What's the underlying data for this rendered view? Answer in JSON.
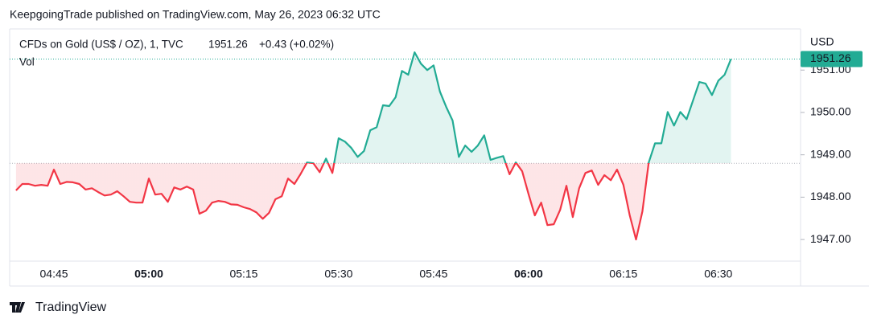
{
  "header": {
    "publisher": "KeepgoingTrade published on TradingView.com, May 26, 2023 06:32 UTC"
  },
  "chart_data": {
    "type": "baseline",
    "symbol": "CFDs on Gold (US$ / OZ), 1, TVC",
    "change": "+0.43 (+0.02%)",
    "volume_label": "Vol",
    "currency": "USD",
    "x": [
      "04:39",
      "04:40",
      "04:41",
      "04:42",
      "04:43",
      "04:44",
      "04:45",
      "04:46",
      "04:47",
      "04:48",
      "04:49",
      "04:50",
      "04:51",
      "04:52",
      "04:53",
      "04:54",
      "04:55",
      "04:56",
      "04:57",
      "04:58",
      "04:59",
      "05:00",
      "05:01",
      "05:02",
      "05:03",
      "05:04",
      "05:05",
      "05:06",
      "05:07",
      "05:08",
      "05:09",
      "05:10",
      "05:11",
      "05:12",
      "05:13",
      "05:14",
      "05:15",
      "05:16",
      "05:17",
      "05:18",
      "05:19",
      "05:20",
      "05:21",
      "05:22",
      "05:23",
      "05:24",
      "05:25",
      "05:26",
      "05:27",
      "05:28",
      "05:29",
      "05:30",
      "05:31",
      "05:32",
      "05:33",
      "05:34",
      "05:35",
      "05:36",
      "05:37",
      "05:38",
      "05:39",
      "05:40",
      "05:41",
      "05:42",
      "05:43",
      "05:44",
      "05:45",
      "05:46",
      "05:47",
      "05:48",
      "05:49",
      "05:50",
      "05:51",
      "05:52",
      "05:53",
      "05:54",
      "05:55",
      "05:56",
      "05:57",
      "05:58",
      "05:59",
      "06:00",
      "06:01",
      "06:02",
      "06:03",
      "06:04",
      "06:05",
      "06:06",
      "06:07",
      "06:08",
      "06:09",
      "06:10",
      "06:11",
      "06:12",
      "06:13",
      "06:14",
      "06:15",
      "06:16",
      "06:17",
      "06:18",
      "06:19",
      "06:20",
      "06:21",
      "06:22",
      "06:23",
      "06:24",
      "06:25",
      "06:26",
      "06:27",
      "06:28",
      "06:29",
      "06:30",
      "06:31",
      "06:32"
    ],
    "series": [
      {
        "name": "CFDs on Gold",
        "color_up": "#22ab94",
        "color_down": "#f23645",
        "values": [
          1948.16,
          1948.31,
          1948.31,
          1948.27,
          1948.29,
          1948.27,
          1948.65,
          1948.31,
          1948.36,
          1948.35,
          1948.31,
          1948.18,
          1948.21,
          1948.12,
          1948.04,
          1948.06,
          1948.14,
          1948.02,
          1947.89,
          1947.87,
          1947.87,
          1948.44,
          1948.06,
          1948.08,
          1947.89,
          1948.23,
          1948.18,
          1948.25,
          1948.18,
          1947.61,
          1947.68,
          1947.87,
          1947.91,
          1947.89,
          1947.83,
          1947.82,
          1947.76,
          1947.72,
          1947.64,
          1947.49,
          1947.63,
          1947.95,
          1948.02,
          1948.44,
          1948.31,
          1948.55,
          1948.82,
          1948.8,
          1948.59,
          1948.91,
          1948.57,
          1949.39,
          1949.31,
          1949.16,
          1948.95,
          1949.09,
          1949.58,
          1949.65,
          1950.17,
          1950.15,
          1950.36,
          1950.98,
          1950.89,
          1951.42,
          1951.15,
          1951.0,
          1951.11,
          1950.49,
          1950.13,
          1949.81,
          1948.95,
          1949.22,
          1949.07,
          1949.22,
          1949.46,
          1948.88,
          1948.93,
          1948.97,
          1948.54,
          1948.82,
          1948.61,
          1948.08,
          1947.57,
          1947.87,
          1947.34,
          1947.36,
          1947.7,
          1948.27,
          1947.53,
          1948.21,
          1948.57,
          1948.63,
          1948.29,
          1948.52,
          1948.4,
          1948.65,
          1948.29,
          1947.57,
          1947.0,
          1947.66,
          1948.82,
          1949.27,
          1949.27,
          1950.01,
          1949.69,
          1950.01,
          1949.84,
          1950.28,
          1950.72,
          1950.68,
          1950.41,
          1950.75,
          1950.89,
          1951.26
        ]
      }
    ],
    "baseline": 1948.8,
    "xlim": [
      "04:38",
      "06:43"
    ],
    "xticks": [
      "04:45",
      "05:00",
      "05:15",
      "05:30",
      "05:45",
      "06:00",
      "06:15",
      "06:30"
    ],
    "ylim": [
      1946.49,
      1951.82
    ],
    "yticks": [
      {
        "value": 1947,
        "label": "1947.00"
      },
      {
        "value": 1948,
        "label": "1948.00"
      },
      {
        "value": 1949,
        "label": "1949.00"
      },
      {
        "value": 1950,
        "label": "1950.00"
      },
      {
        "value": 1951,
        "label": "1951.00"
      }
    ]
  },
  "footer": {
    "brand": "TradingView"
  }
}
